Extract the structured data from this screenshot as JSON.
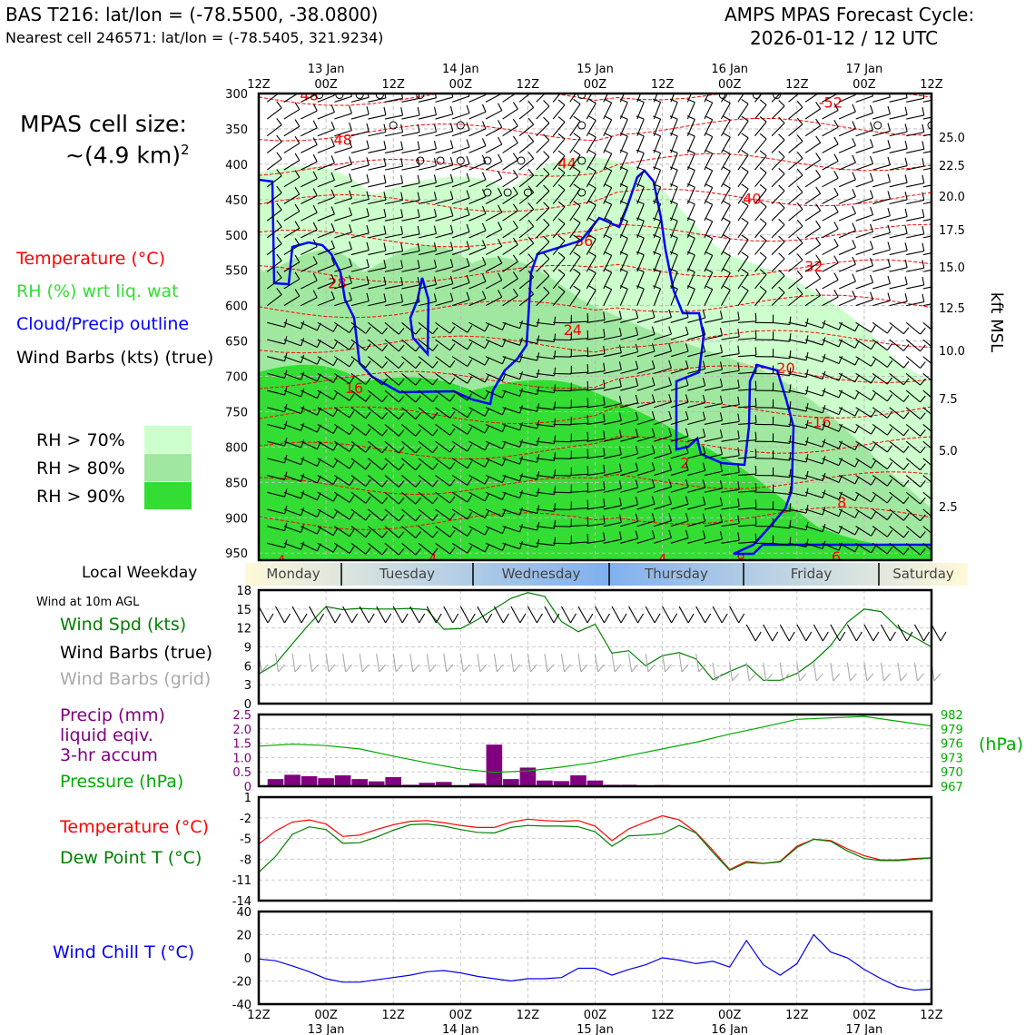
{
  "header": {
    "station": "BAS T216: lat/lon = (-78.5500, -38.0800)",
    "nearest": "Nearest cell 246571: lat/lon = (-78.5405, 321.9234)",
    "cycle_line1": "AMPS MPAS Forecast Cycle:",
    "cycle_line2": "2026-01-12 / 12 UTC"
  },
  "left_panel": {
    "cell_size_label": "MPAS cell size:",
    "cell_size_value": "~(4.9 km)",
    "cell_size_exp": "2",
    "legend_temperature": "Temperature (°C)",
    "legend_rh": "RH (%) wrt liq. wat",
    "legend_cloud": "Cloud/Precip outline",
    "legend_wind": "Wind Barbs (kts) (true)",
    "rh_levels": [
      "RH > 70%",
      "RH > 80%",
      "RH > 90%"
    ],
    "rh_colors": [
      "#ccffcc",
      "#a0e8a0",
      "#33dd33"
    ],
    "weekday_title": "Local Weekday",
    "wind10m_title": "Wind at 10m AGL",
    "wind_spd_label": "Wind Spd (kts)",
    "wind_barbs_true": "Wind Barbs (true)",
    "wind_barbs_grid": "Wind Barbs (grid)",
    "precip_label_1": "Precip (mm)",
    "precip_label_2": "liquid eqiv.",
    "precip_label_3": "3-hr accum",
    "pressure_label": "Pressure (hPa)",
    "pressure_unit": "(hPa)",
    "temp_label": "Temperature (°C)",
    "dew_label": "Dew Point T (°C)",
    "windchill_label": "Wind Chill T (°C)"
  },
  "colors": {
    "temperature": "#ff0000",
    "rh_text": "#33dd33",
    "cloud": "#0000ff",
    "wind_spd": "#008000",
    "precip": "#800080",
    "pressure": "#00aa00",
    "dewpoint": "#008000",
    "windchill": "#0000ee",
    "grid_barbs": "#aaaaaa"
  },
  "time_axis": {
    "ticks": [
      "12Z",
      "00Z",
      "12Z",
      "00Z",
      "12Z",
      "00Z",
      "12Z",
      "00Z",
      "12Z",
      "00Z",
      "12Z"
    ],
    "date_labels": [
      "13 Jan",
      "14 Jan",
      "15 Jan",
      "16 Jan",
      "17 Jan"
    ],
    "weekdays": [
      "Monday",
      "Tuesday",
      "Wednesday",
      "Thursday",
      "Friday",
      "Saturday"
    ]
  },
  "chart_data": [
    {
      "type": "heatmap",
      "name": "time-height cross section",
      "y_pressure_ticks": [
        "300",
        "350",
        "400",
        "450",
        "500",
        "550",
        "600",
        "650",
        "700",
        "750",
        "800",
        "850",
        "900",
        "950"
      ],
      "y_kft_ticks": [
        "25.0",
        "22.5",
        "20.0",
        "17.5",
        "15.0",
        "12.5",
        "10.0",
        "7.5",
        "5.0",
        "2.5"
      ],
      "ylabel_right": "kft MSL",
      "ylim": [
        960,
        300
      ],
      "temperature_contours": {
        "levels": [
          -52,
          -48,
          -44,
          -40,
          -36,
          -32,
          -28,
          -24,
          -20,
          -16,
          -12,
          -8,
          -4
        ],
        "labels": [
          {
            "t": 9,
            "p": 302,
            "text": "48"
          },
          {
            "t": 15,
            "p": 365,
            "text": "48"
          },
          {
            "t": 55,
            "p": 398,
            "text": "44"
          },
          {
            "t": 88,
            "p": 448,
            "text": "40"
          },
          {
            "t": 58,
            "p": 508,
            "text": "36"
          },
          {
            "t": 99,
            "p": 544,
            "text": "32"
          },
          {
            "t": 14,
            "p": 568,
            "text": "28"
          },
          {
            "t": 56,
            "p": 634,
            "text": "24"
          },
          {
            "t": 94,
            "p": 688,
            "text": "20"
          },
          {
            "t": 17,
            "p": 716,
            "text": "16"
          },
          {
            "t": 100,
            "p": 764,
            "text": "-16"
          },
          {
            "t": 76,
            "p": 822,
            "text": "2"
          },
          {
            "t": 104,
            "p": 878,
            "text": "8"
          },
          {
            "t": 4,
            "p": 960,
            "text": "4"
          },
          {
            "t": 31,
            "p": 958,
            "text": "4"
          },
          {
            "t": 72,
            "p": 958,
            "text": "4"
          },
          {
            "t": 86,
            "p": 958,
            "text": "8"
          },
          {
            "t": 103,
            "p": 955,
            "text": "6"
          },
          {
            "t": 102,
            "p": 312,
            "text": "-52"
          }
        ]
      }
    },
    {
      "type": "line",
      "name": "wind speed 10m",
      "ylabel": "Wind Spd (kts)",
      "ylim": [
        0,
        18
      ],
      "yticks": [
        "0",
        "3",
        "6",
        "9",
        "12",
        "15",
        "18"
      ],
      "x_hours": [
        0,
        3,
        6,
        9,
        12,
        15,
        18,
        21,
        24,
        27,
        30,
        33,
        36,
        39,
        42,
        45,
        48,
        51,
        54,
        57,
        60,
        63,
        66,
        69,
        72,
        75,
        78,
        81,
        84,
        87,
        90,
        93,
        96,
        99,
        102,
        105,
        108,
        111,
        114,
        117,
        120
      ],
      "values": [
        4.7,
        6.3,
        9.5,
        12.6,
        15.4,
        14.9,
        15.1,
        15.0,
        15.0,
        15.1,
        14.9,
        11.8,
        11.9,
        13.3,
        15.0,
        16.7,
        17.6,
        17.0,
        13.0,
        11.4,
        12.6,
        8.0,
        8.4,
        6.0,
        7.6,
        8.1,
        7.1,
        3.8,
        5.1,
        6.2,
        3.7,
        3.7,
        4.8,
        6.7,
        9.2,
        12.9,
        15.0,
        14.6,
        12.0,
        10.5,
        9.0
      ]
    },
    {
      "type": "bar",
      "name": "precipitation 3hr",
      "ylabel": "Precip (mm)",
      "ylim": [
        0,
        2.5
      ],
      "yticks": [
        "0",
        "0.5",
        "1.0",
        "1.5",
        "2.0",
        "2.5"
      ],
      "x_hours": [
        3,
        6,
        9,
        12,
        15,
        18,
        21,
        24,
        27,
        30,
        33,
        36,
        39,
        42,
        45,
        48,
        51,
        54,
        57,
        60,
        63,
        66,
        69,
        72,
        75,
        78,
        81
      ],
      "values": [
        0.25,
        0.4,
        0.35,
        0.28,
        0.38,
        0.25,
        0.17,
        0.32,
        0.05,
        0.12,
        0.15,
        0.02,
        0.1,
        1.45,
        0.25,
        0.65,
        0.2,
        0.18,
        0.38,
        0.2,
        0.05,
        0.05,
        0.02,
        0.04,
        0,
        0,
        0
      ]
    },
    {
      "type": "line",
      "name": "pressure",
      "ylabel": "Pressure (hPa)",
      "ylim": [
        967,
        982
      ],
      "yticks": [
        "967",
        "970",
        "973",
        "976",
        "979",
        "982"
      ],
      "x_hours": [
        0,
        6,
        12,
        18,
        24,
        30,
        36,
        42,
        48,
        54,
        60,
        66,
        72,
        78,
        84,
        90,
        96,
        102,
        108,
        114,
        120
      ],
      "values": [
        975.4,
        975.8,
        975.5,
        974.8,
        973.3,
        971.9,
        970.6,
        969.9,
        970.2,
        971.0,
        972.0,
        973.4,
        974.8,
        976.2,
        977.9,
        979.4,
        981.0,
        981.3,
        981.6,
        980.6,
        979.6
      ]
    },
    {
      "type": "line",
      "name": "temperature and dew point",
      "ylim": [
        -14,
        1
      ],
      "yticks": [
        "1",
        "-2",
        "-5",
        "-8",
        "-11",
        "-14"
      ],
      "series": [
        {
          "name": "Temperature (°C)",
          "x_hours": [
            0,
            3,
            6,
            9,
            12,
            15,
            18,
            21,
            24,
            27,
            30,
            33,
            36,
            39,
            42,
            45,
            48,
            51,
            54,
            57,
            60,
            63,
            66,
            69,
            72,
            75,
            78,
            81,
            84,
            87,
            90,
            93,
            96,
            99,
            102,
            105,
            108,
            111,
            114,
            117,
            120
          ],
          "values": [
            -5.8,
            -3.9,
            -2.6,
            -2.3,
            -2.9,
            -4.7,
            -4.5,
            -3.7,
            -3.0,
            -2.5,
            -2.4,
            -2.7,
            -3.1,
            -3.4,
            -3.4,
            -2.6,
            -2.2,
            -2.4,
            -2.5,
            -2.4,
            -3.2,
            -5.3,
            -3.6,
            -2.6,
            -1.7,
            -2.3,
            -4.1,
            -6.7,
            -9.5,
            -8.3,
            -8.6,
            -8.3,
            -6.1,
            -5.1,
            -5.3,
            -6.5,
            -7.5,
            -8.1,
            -8.1,
            -7.9,
            -7.8
          ]
        },
        {
          "name": "Dew Point T (°C)",
          "x_hours": [
            0,
            3,
            6,
            9,
            12,
            15,
            18,
            21,
            24,
            27,
            30,
            33,
            36,
            39,
            42,
            45,
            48,
            51,
            54,
            57,
            60,
            63,
            66,
            69,
            72,
            75,
            78,
            81,
            84,
            87,
            90,
            93,
            96,
            99,
            102,
            105,
            108,
            111,
            114,
            117,
            120
          ],
          "values": [
            -9.9,
            -7.6,
            -4.4,
            -3.3,
            -3.7,
            -5.7,
            -5.6,
            -4.8,
            -3.8,
            -3.0,
            -2.9,
            -3.2,
            -3.7,
            -4.1,
            -4.2,
            -3.4,
            -3.1,
            -3.2,
            -3.2,
            -3.3,
            -4.0,
            -6.1,
            -4.6,
            -4.5,
            -4.3,
            -3.1,
            -4.2,
            -7.0,
            -9.6,
            -8.5,
            -8.6,
            -8.4,
            -6.3,
            -5.1,
            -5.4,
            -6.8,
            -7.9,
            -8.2,
            -8.2,
            -8.0,
            -7.8
          ]
        }
      ]
    },
    {
      "type": "line",
      "name": "wind chill",
      "ylabel": "Wind Chill T (°C)",
      "ylim": [
        -40,
        40
      ],
      "yticks": [
        "40",
        "20",
        "0",
        "-20",
        "-40"
      ],
      "x_hours": [
        0,
        3,
        6,
        9,
        12,
        15,
        18,
        21,
        24,
        27,
        30,
        33,
        36,
        39,
        42,
        45,
        48,
        51,
        54,
        57,
        60,
        63,
        66,
        69,
        72,
        75,
        78,
        81,
        84,
        87,
        90,
        93,
        96,
        99,
        102,
        105,
        108,
        111,
        114,
        117,
        120
      ],
      "values": [
        -1,
        -2.5,
        -7,
        -12,
        -18,
        -21,
        -21,
        -19,
        -17,
        -15,
        -12,
        -11,
        -13,
        -16,
        -18,
        -20,
        -18,
        -18,
        -17,
        -9,
        -9,
        -15,
        -10,
        -6,
        0,
        -2,
        -5,
        -3,
        -8,
        15,
        -6,
        -15,
        -5,
        20,
        5,
        0,
        -10,
        -18,
        -25,
        -28,
        -27
      ]
    }
  ]
}
